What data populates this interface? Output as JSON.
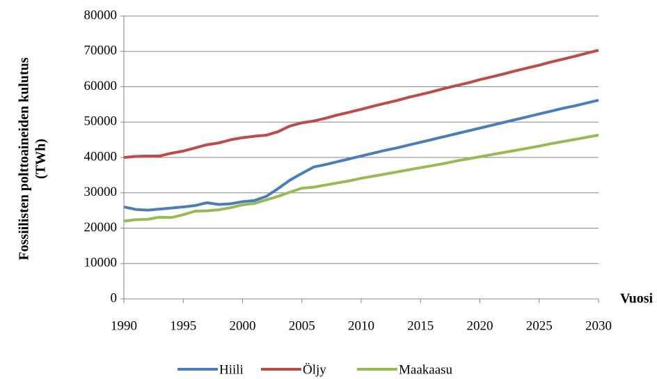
{
  "chart_data": {
    "type": "line",
    "ylabel": [
      "Fossiilisten polttoaineiden kulutus",
      "(TWh)"
    ],
    "xlabel": "Vuosi",
    "x": [
      1990,
      1991,
      1992,
      1993,
      1994,
      1995,
      1996,
      1997,
      1998,
      1999,
      2000,
      2001,
      2002,
      2003,
      2004,
      2005,
      2006,
      2007,
      2008,
      2009,
      2010,
      2011,
      2012,
      2013,
      2014,
      2015,
      2016,
      2017,
      2018,
      2019,
      2020,
      2021,
      2022,
      2023,
      2024,
      2025,
      2026,
      2027,
      2028,
      2029,
      2030
    ],
    "series": [
      {
        "name": "Hiili",
        "color": "#4a7ebb",
        "values": [
          26000,
          25300,
          25100,
          25400,
          25700,
          26000,
          26400,
          27200,
          26700,
          26900,
          27500,
          27800,
          29000,
          31200,
          33600,
          35500,
          37300,
          38000,
          38800,
          39600,
          40400,
          41200,
          42000,
          42700,
          43500,
          44300,
          45100,
          45900,
          46700,
          47500,
          48300,
          49100,
          49900,
          50700,
          51500,
          52300,
          53100,
          53900,
          54600,
          55400,
          56200
        ]
      },
      {
        "name": "Öljy",
        "color": "#be4b48",
        "values": [
          40000,
          40300,
          40400,
          40400,
          41200,
          41800,
          42700,
          43600,
          44100,
          45000,
          45600,
          46000,
          46300,
          47300,
          48900,
          49800,
          50300,
          51100,
          52000,
          52800,
          53600,
          54500,
          55300,
          56100,
          57000,
          57800,
          58600,
          59500,
          60300,
          61100,
          62000,
          62800,
          63600,
          64500,
          65300,
          66100,
          67000,
          67800,
          68600,
          69500,
          70300
        ]
      },
      {
        "name": "Maakaasu",
        "color": "#98b954",
        "values": [
          22000,
          22400,
          22500,
          23100,
          23000,
          23800,
          24800,
          24900,
          25200,
          25800,
          26600,
          27000,
          28000,
          29000,
          30200,
          31300,
          31600,
          32200,
          32800,
          33400,
          34100,
          34700,
          35300,
          35900,
          36500,
          37100,
          37700,
          38300,
          39000,
          39600,
          40200,
          40800,
          41400,
          42000,
          42600,
          43200,
          43900,
          44500,
          45100,
          45700,
          46300
        ]
      }
    ],
    "xlim": [
      1990,
      2030
    ],
    "xticks": [
      1990,
      1995,
      2000,
      2005,
      2010,
      2015,
      2020,
      2025,
      2030
    ],
    "ylim": [
      0,
      80000
    ],
    "yticks": [
      0,
      10000,
      20000,
      30000,
      40000,
      50000,
      60000,
      70000,
      80000
    ],
    "grid": true,
    "legend": "bottom"
  }
}
